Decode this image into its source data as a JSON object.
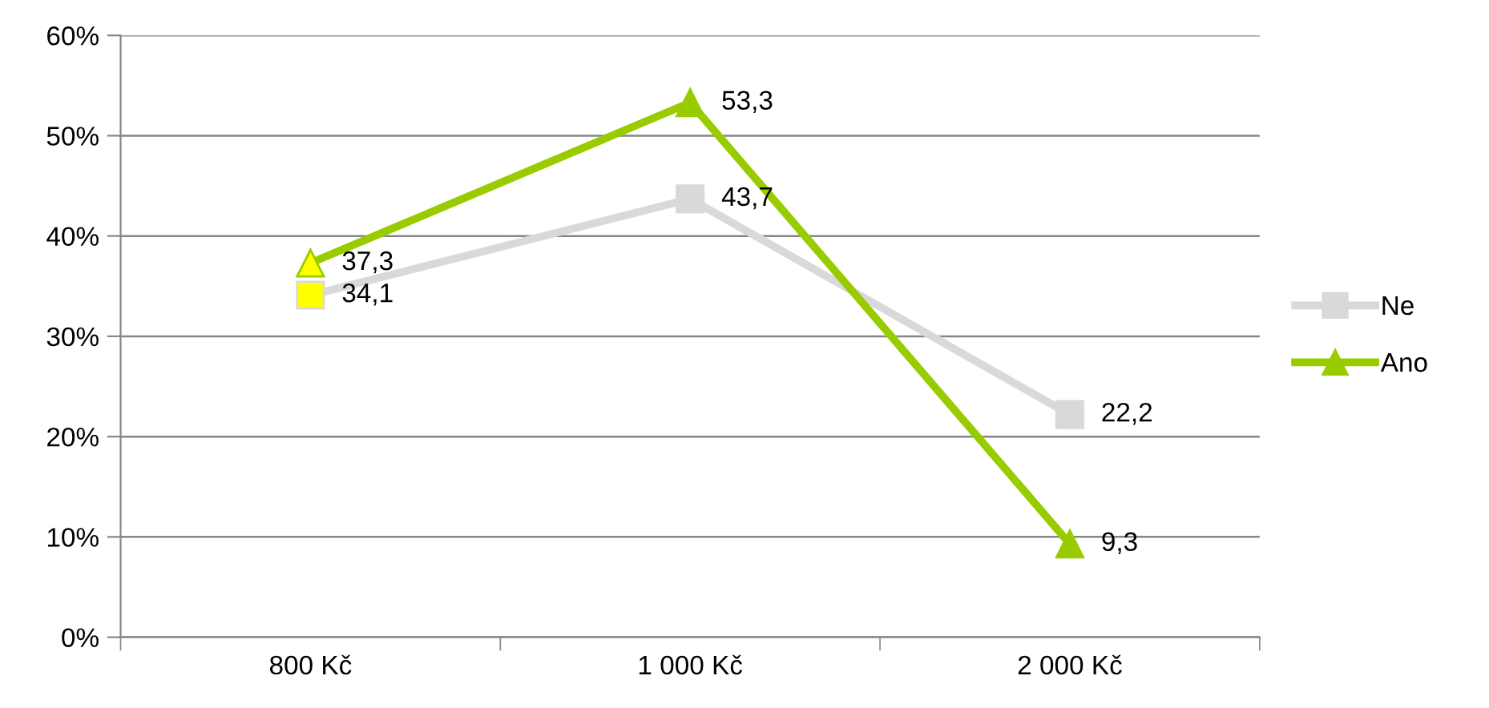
{
  "chart_data": {
    "type": "line",
    "categories": [
      "800 Kč",
      "1 000 Kč",
      "2 000 Kč"
    ],
    "series": [
      {
        "name": "Ne",
        "color": "#d9d9d9",
        "marker": "square",
        "colors": [
          "#ffff00",
          "#d9d9d9",
          "#d9d9d9"
        ],
        "values": [
          34.1,
          43.7,
          22.2
        ],
        "value_labels": [
          "34,1",
          "43,7",
          "22,2"
        ]
      },
      {
        "name": "Ano",
        "color": "#99cc00",
        "marker": "triangle",
        "colors": [
          "#ffff00",
          "#99cc00",
          "#99cc00"
        ],
        "values": [
          37.3,
          53.3,
          9.3
        ],
        "value_labels": [
          "37,3",
          "53,3",
          "9,3"
        ]
      }
    ],
    "ylim": [
      0,
      60
    ],
    "yticks": [
      {
        "value": 0,
        "label": "0%"
      },
      {
        "value": 10,
        "label": "10%"
      },
      {
        "value": 20,
        "label": "20%"
      },
      {
        "value": 30,
        "label": "30%"
      },
      {
        "value": 40,
        "label": "40%"
      },
      {
        "value": 50,
        "label": "50%"
      },
      {
        "value": 60,
        "label": "60%"
      }
    ],
    "grid": "y",
    "legend": "right",
    "line_style": "solid"
  }
}
